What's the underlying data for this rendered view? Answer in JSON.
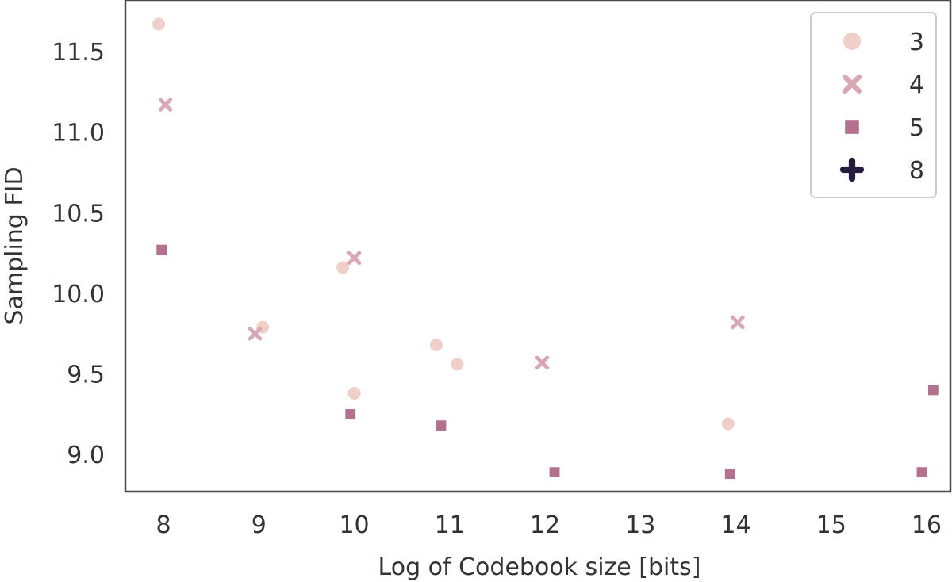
{
  "chart_data": {
    "type": "scatter",
    "title": "",
    "xlabel": "Log of Codebook size [bits]",
    "ylabel": "Sampling FID",
    "xlim": [
      7.6,
      16.25
    ],
    "ylim": [
      8.77,
      11.82
    ],
    "xticks": [
      "8",
      "9",
      "10",
      "11",
      "12",
      "13",
      "14",
      "15",
      "16"
    ],
    "yticks": [
      "9.0",
      "9.5",
      "10.0",
      "10.5",
      "11.0",
      "11.5"
    ],
    "grid": false,
    "legend": {
      "placement": "top-right"
    },
    "series": [
      {
        "name": "3",
        "marker": "circle",
        "color": "#efcfc7",
        "points": [
          {
            "x": 7.95,
            "y": 11.67
          },
          {
            "x": 9.04,
            "y": 9.79
          },
          {
            "x": 9.88,
            "y": 10.16
          },
          {
            "x": 10.0,
            "y": 9.38
          },
          {
            "x": 10.86,
            "y": 9.68
          },
          {
            "x": 11.08,
            "y": 9.56
          },
          {
            "x": 13.92,
            "y": 9.19
          }
        ]
      },
      {
        "name": "4",
        "marker": "x",
        "color": "#d8a9b4",
        "points": [
          {
            "x": 8.02,
            "y": 11.17
          },
          {
            "x": 8.96,
            "y": 9.75
          },
          {
            "x": 10.0,
            "y": 10.22
          },
          {
            "x": 11.97,
            "y": 9.57
          },
          {
            "x": 14.02,
            "y": 9.82
          }
        ]
      },
      {
        "name": "5",
        "marker": "square",
        "color": "#b4708f",
        "points": [
          {
            "x": 7.98,
            "y": 10.27
          },
          {
            "x": 9.96,
            "y": 9.25
          },
          {
            "x": 10.91,
            "y": 9.18
          },
          {
            "x": 12.1,
            "y": 8.89
          },
          {
            "x": 13.94,
            "y": 8.88
          },
          {
            "x": 15.95,
            "y": 8.89
          },
          {
            "x": 16.07,
            "y": 9.4
          }
        ]
      },
      {
        "name": "8",
        "marker": "plus",
        "color": "#281c3e",
        "points": []
      }
    ]
  }
}
